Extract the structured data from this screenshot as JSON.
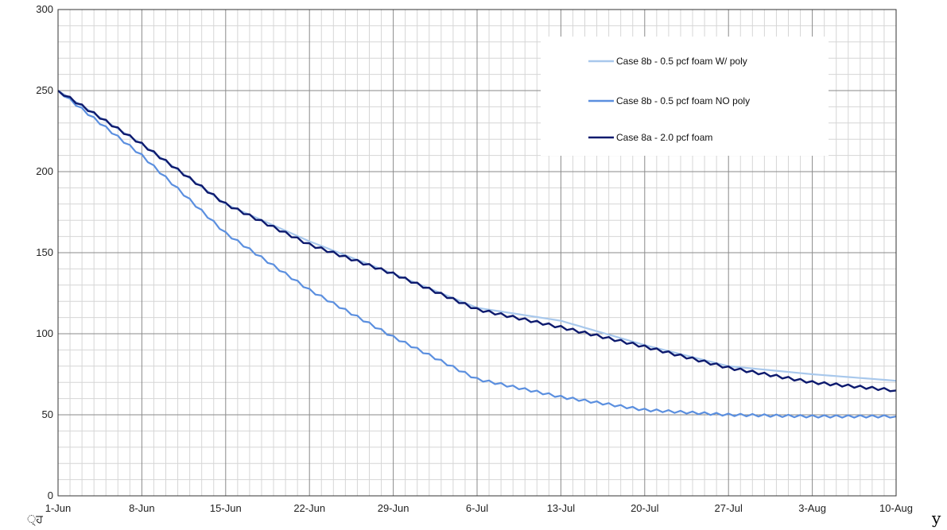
{
  "chart_data": {
    "type": "line",
    "title": "",
    "xlabel": "",
    "ylabel": "",
    "x_start": "1-Jun",
    "x_end": "10-Aug",
    "x_ticks": [
      "1-Jun",
      "8-Jun",
      "15-Jun",
      "22-Jun",
      "29-Jun",
      "6-Jul",
      "13-Jul",
      "20-Jul",
      "27-Jul",
      "3-Aug",
      "10-Aug"
    ],
    "ylim": [
      0,
      300
    ],
    "y_ticks": [
      0,
      50,
      100,
      150,
      200,
      250,
      300
    ],
    "grid": true,
    "legend_position": "top-right",
    "series": [
      {
        "name": "Case 8b - 0.5 pcf foam W/ poly",
        "color": "#a8c8ec",
        "points": [
          [
            "1-Jun",
            250
          ],
          [
            "8-Jun",
            217
          ],
          [
            "15-Jun",
            180
          ],
          [
            "22-Jun",
            157
          ],
          [
            "29-Jun",
            137
          ],
          [
            "6-Jul",
            116
          ],
          [
            "13-Jul",
            108
          ],
          [
            "20-Jul",
            93
          ],
          [
            "27-Jul",
            80
          ],
          [
            "3-Aug",
            75
          ],
          [
            "10-Aug",
            71
          ]
        ]
      },
      {
        "name": "Case 8b - 0.5 pcf foam NO poly",
        "color": "#5b8fdf",
        "points": [
          [
            "1-Jun",
            250
          ],
          [
            "8-Jun",
            210
          ],
          [
            "15-Jun",
            162
          ],
          [
            "22-Jun",
            127
          ],
          [
            "29-Jun",
            98
          ],
          [
            "6-Jul",
            72
          ],
          [
            "13-Jul",
            61
          ],
          [
            "20-Jul",
            53
          ],
          [
            "27-Jul",
            50
          ],
          [
            "3-Aug",
            49
          ],
          [
            "10-Aug",
            49
          ]
        ]
      },
      {
        "name": "Case 8a - 2.0 pcf foam",
        "color": "#0d1a6e",
        "points": [
          [
            "1-Jun",
            250
          ],
          [
            "8-Jun",
            217
          ],
          [
            "15-Jun",
            180
          ],
          [
            "22-Jun",
            155
          ],
          [
            "29-Jun",
            137
          ],
          [
            "6-Jul",
            115
          ],
          [
            "13-Jul",
            104
          ],
          [
            "20-Jul",
            92
          ],
          [
            "27-Jul",
            79
          ],
          [
            "3-Aug",
            70
          ],
          [
            "10-Aug",
            65
          ]
        ]
      }
    ]
  },
  "stray_marks": {
    "left": "੍ਹ",
    "right": "y"
  }
}
